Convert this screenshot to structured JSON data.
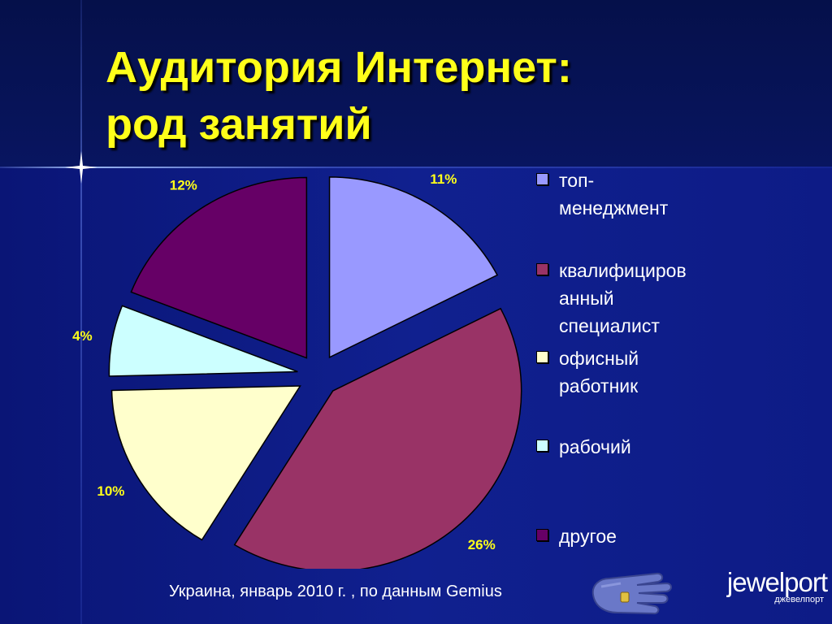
{
  "title": {
    "line1": "Аудитория Интернет:",
    "line2": "род занятий"
  },
  "footer": {
    "source": "Украина, январь 2010 г. , по данным  Gemius"
  },
  "logo": {
    "name": "jewelport",
    "sub": "джевелпорт"
  },
  "colors": {
    "background": "#0e1a8c",
    "title": "#ffff1a",
    "label": "#ffff1a",
    "text": "#ffffff"
  },
  "chart_data": {
    "type": "pie",
    "exploded": true,
    "legend_position": "right",
    "categories": [
      "топ-менеджмент",
      "квалифицированный специалист",
      "офисный работник",
      "рабочий",
      "другое"
    ],
    "values": [
      11,
      26,
      10,
      4,
      12
    ],
    "value_labels": [
      "11%",
      "26%",
      "10%",
      "4%",
      "12%"
    ],
    "colors": [
      "#9999ff",
      "#993366",
      "#ffffcc",
      "#ccffff",
      "#660066"
    ]
  },
  "legend": {
    "items": [
      {
        "lines": [
          "топ-",
          "менеджмент"
        ],
        "color": "#9999ff"
      },
      {
        "lines": [
          "квалифициров",
          "анный",
          "специалист"
        ],
        "color": "#993366"
      },
      {
        "lines": [
          "офисный",
          "работник"
        ],
        "color": "#ffffcc"
      },
      {
        "lines": [
          "рабочий"
        ],
        "color": "#ccffff"
      },
      {
        "lines": [
          "другое"
        ],
        "color": "#660066"
      }
    ]
  }
}
